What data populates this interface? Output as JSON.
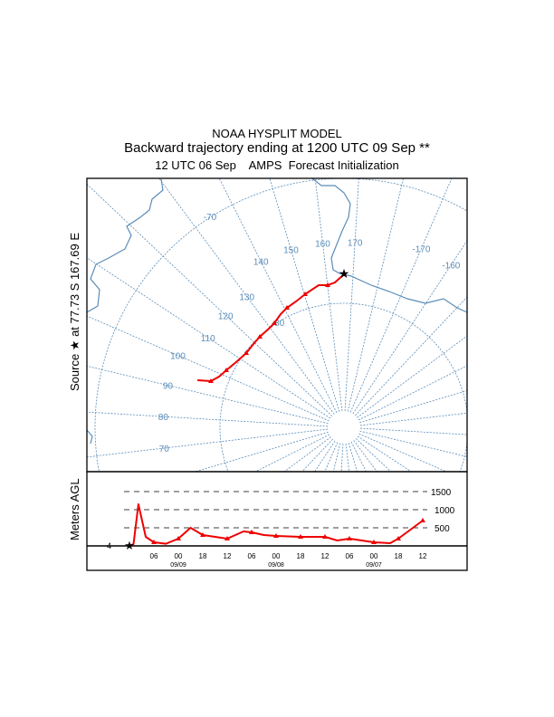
{
  "header": {
    "title": "NOAA HYSPLIT MODEL",
    "subtitle": "Backward trajectory ending at 1200 UTC 09 Sep **",
    "init_line": "12 UTC 06 Sep    AMPS  Forecast Initialization"
  },
  "source_label": "Source ★ at  77.73 S  167.69 E",
  "map": {
    "grid_color": "#5b8db8",
    "trajectory_color": "#ee0000",
    "meridian_labels": [
      "70",
      "80",
      "90",
      "100",
      "110",
      "120",
      "130",
      "140",
      "150",
      "160",
      "170",
      "-170",
      "-160"
    ],
    "latitude_labels": [
      "-70",
      "-80"
    ],
    "source_marker": "star-icon"
  },
  "chart_data": {
    "type": "line",
    "ylabel": "Meters AGL",
    "x_unit": "hours before 1200 UTC 09 Sep",
    "y_gridlines": [
      500,
      1000,
      1500
    ],
    "y_tick_labels": [
      "500",
      "1000",
      "1500"
    ],
    "start_label": "4",
    "x_ticks": [
      {
        "hour": 6,
        "label": "06",
        "date": ""
      },
      {
        "hour": 12,
        "label": "00",
        "date": "09/09"
      },
      {
        "hour": 18,
        "label": "18",
        "date": ""
      },
      {
        "hour": 24,
        "label": "12",
        "date": ""
      },
      {
        "hour": 30,
        "label": "06",
        "date": ""
      },
      {
        "hour": 36,
        "label": "00",
        "date": "09/08"
      },
      {
        "hour": 42,
        "label": "18",
        "date": ""
      },
      {
        "hour": 48,
        "label": "12",
        "date": ""
      },
      {
        "hour": 54,
        "label": "06",
        "date": ""
      },
      {
        "hour": 60,
        "label": "00",
        "date": "09/07"
      },
      {
        "hour": 66,
        "label": "18",
        "date": ""
      },
      {
        "hour": 72,
        "label": "12",
        "date": ""
      }
    ],
    "series": [
      {
        "x": [
          0,
          1,
          2.2,
          4,
          6,
          9,
          12,
          15,
          18,
          21,
          24,
          28,
          30,
          33,
          36,
          42,
          48,
          51,
          54,
          57,
          60,
          64,
          66,
          69,
          72
        ],
        "y": [
          4,
          50,
          1150,
          250,
          100,
          60,
          200,
          500,
          300,
          250,
          200,
          400,
          375,
          300,
          275,
          250,
          250,
          150,
          200,
          150,
          100,
          75,
          200,
          450,
          700
        ]
      }
    ]
  }
}
